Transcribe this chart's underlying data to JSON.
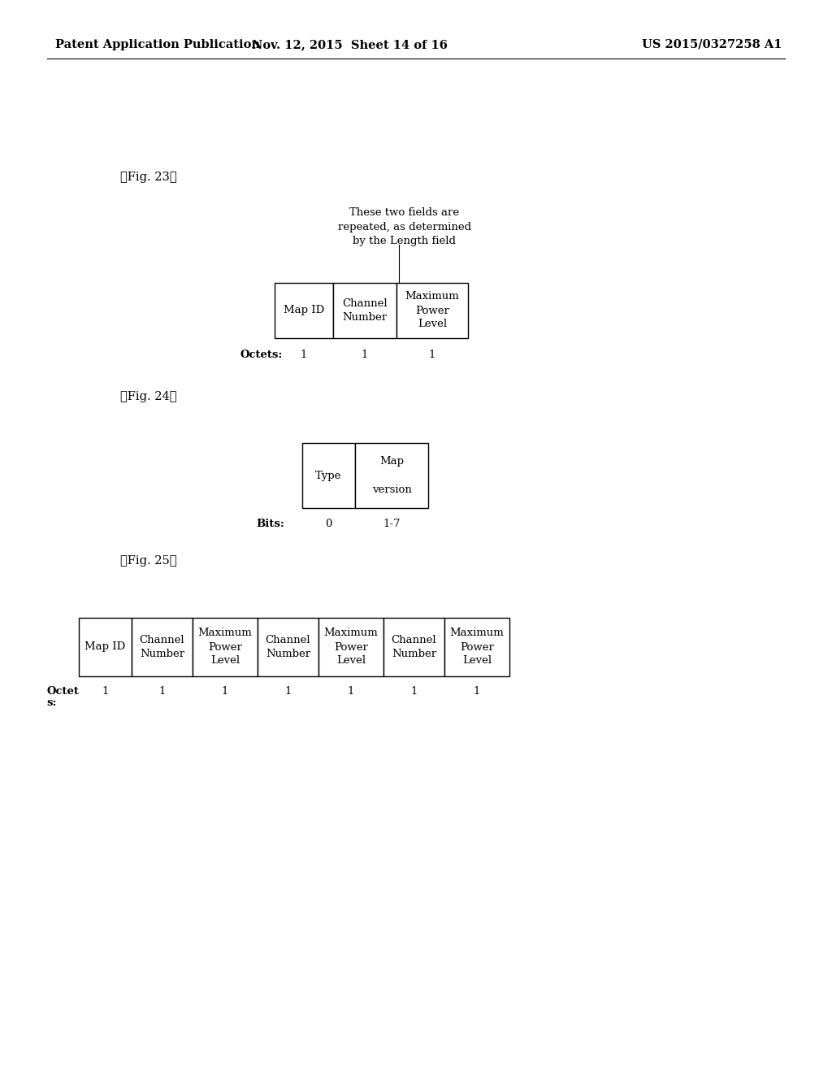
{
  "background_color": "#ffffff",
  "header_left": "Patent Application Publication",
  "header_mid": "Nov. 12, 2015  Sheet 14 of 16",
  "header_right": "US 2015/0327258 A1",
  "header_fontsize": 10.5,
  "fig23_label": "【Fig. 23】",
  "fig24_label": "【Fig. 24】",
  "fig25_label": "【Fig. 25】",
  "label_fontsize": 10.5,
  "fig23_annotation": "These two fields are\nrepeated, as determined\nby the Length field",
  "fig23_cols": [
    "Map ID",
    "Channel\nNumber",
    "Maximum\nPower\nLevel"
  ],
  "fig23_octets_label": "Octets:",
  "fig23_octets_values": [
    "1",
    "1",
    "1"
  ],
  "fig24_cols": [
    "Type",
    "Map\n\nversion"
  ],
  "fig24_bits_label": "Bits:",
  "fig24_bits_values": [
    "0",
    "1-7"
  ],
  "fig25_cols": [
    "Map ID",
    "Channel\nNumber",
    "Maximum\nPower\nLevel",
    "Channel\nNumber",
    "Maximum\nPower\nLevel",
    "Channel\nNumber",
    "Maximum\nPower\nLevel"
  ],
  "fig25_octets_label": "Octet\ns:",
  "fig25_octets_values": [
    "1",
    "1",
    "1",
    "1",
    "1",
    "1",
    "1"
  ],
  "table_fontsize": 9.5,
  "octet_fontsize": 9.5
}
